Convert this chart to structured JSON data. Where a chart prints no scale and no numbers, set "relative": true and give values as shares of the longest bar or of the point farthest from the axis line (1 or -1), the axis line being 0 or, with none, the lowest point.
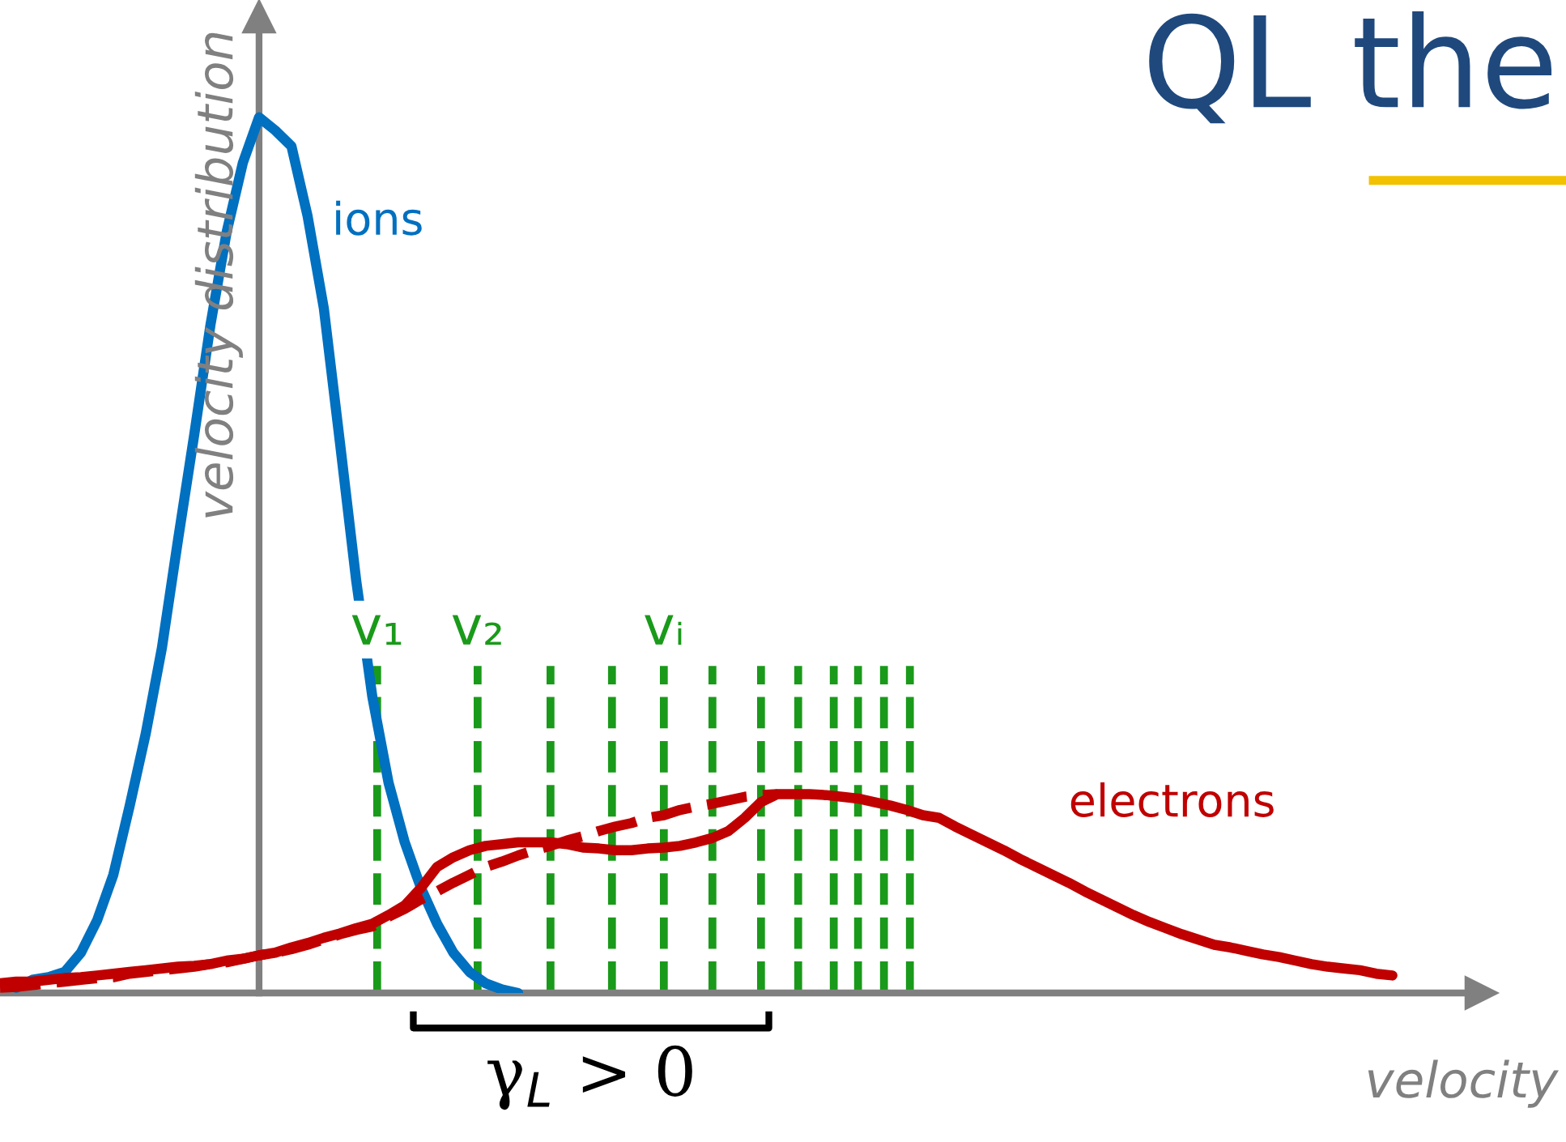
{
  "chart_data": {
    "type": "line",
    "relative": true,
    "title": "QL the",
    "xlabel": "velocity",
    "ylabel": "velocity distribution",
    "categories": [
      null,
      null,
      null,
      null,
      null,
      null,
      null,
      null,
      null,
      null,
      null,
      null,
      null,
      null,
      null,
      null,
      null,
      null,
      null,
      null,
      null,
      null,
      null,
      null,
      null,
      null,
      null,
      null,
      null,
      null,
      null,
      null,
      null,
      null,
      null,
      null,
      null,
      null,
      null,
      null,
      null,
      null,
      null,
      null,
      null,
      null,
      null,
      null,
      null,
      null,
      null,
      null,
      null,
      null,
      null,
      null,
      null,
      null,
      null,
      null,
      null,
      null,
      null,
      null,
      null,
      null,
      null,
      null,
      null,
      null,
      null,
      null,
      null,
      null,
      null,
      null,
      null,
      null,
      null,
      null,
      null,
      null,
      null,
      null,
      null,
      null,
      null,
      null,
      null,
      null,
      null
    ],
    "series": [
      {
        "name": "ions",
        "color": "#0070c0",
        "line_style": "solid",
        "values": [
          null,
          0.006,
          0.015,
          0.018,
          0.024,
          0.046,
          0.083,
          0.135,
          0.213,
          0.296,
          0.394,
          0.518,
          0.638,
          0.763,
          0.869,
          0.948,
          1,
          0.985,
          0.967,
          0.887,
          0.782,
          0.628,
          0.471,
          0.338,
          0.24,
          0.172,
          0.12,
          0.079,
          0.046,
          0.024,
          0.011,
          0.004,
          0,
          null,
          null,
          null,
          null,
          null,
          null,
          null,
          null,
          null,
          null,
          null,
          null,
          null,
          null,
          null,
          null,
          null,
          null,
          null,
          null,
          null,
          null,
          null,
          null,
          null,
          null,
          null,
          null,
          null,
          null,
          null,
          null,
          null,
          null,
          null,
          null,
          null,
          null,
          null,
          null,
          null,
          null,
          null,
          null,
          null,
          null,
          null,
          null,
          null,
          null,
          null,
          null,
          null,
          null,
          null,
          null,
          null,
          null
        ]
      },
      {
        "name": "electrons",
        "color": "#c00000",
        "line_style": "solid",
        "values": [
          0.011,
          0.013,
          0.013,
          0.015,
          0.017,
          0.018,
          0.02,
          0.022,
          0.024,
          0.026,
          0.028,
          0.03,
          0.031,
          0.033,
          0.037,
          0.039,
          0.043,
          0.046,
          0.052,
          0.057,
          0.063,
          0.068,
          0.074,
          0.079,
          0.089,
          0.1,
          0.12,
          0.144,
          0.155,
          0.163,
          0.168,
          0.17,
          0.172,
          0.172,
          0.172,
          0.17,
          0.166,
          0.165,
          0.163,
          0.163,
          0.165,
          0.166,
          0.168,
          0.172,
          0.177,
          0.185,
          0.2,
          0.218,
          0.227,
          0.227,
          0.227,
          0.226,
          0.224,
          0.222,
          0.218,
          0.214,
          0.209,
          0.203,
          0.2,
          0.19,
          0.181,
          0.172,
          0.163,
          0.153,
          0.144,
          0.135,
          0.126,
          0.116,
          0.107,
          0.098,
          0.089,
          0.081,
          0.074,
          0.067,
          0.061,
          0.055,
          0.052,
          0.048,
          0.044,
          0.041,
          0.037,
          0.033,
          0.03,
          0.028,
          0.026,
          0.022,
          0.02,
          null,
          null,
          null,
          null
        ]
      },
      {
        "color": "#c00000",
        "line_style": "dashed",
        "values": [
          0.006,
          0.007,
          0.009,
          0.011,
          0.013,
          0.015,
          0.017,
          0.018,
          0.022,
          0.024,
          0.026,
          0.028,
          0.03,
          0.033,
          0.035,
          0.039,
          0.043,
          0.046,
          0.05,
          0.055,
          0.061,
          0.067,
          0.072,
          0.076,
          0.087,
          0.096,
          0.107,
          0.116,
          0.126,
          0.135,
          0.144,
          0.15,
          0.157,
          0.163,
          0.168,
          0.174,
          0.179,
          0.185,
          0.19,
          0.194,
          0.2,
          0.203,
          0.209,
          0.213,
          0.216,
          0.22,
          0.224,
          0.226,
          0.227,
          null,
          null,
          null,
          null,
          null,
          null,
          null,
          null,
          null,
          null,
          null,
          null,
          null,
          null,
          null,
          null,
          null,
          null,
          null,
          null,
          null,
          null,
          null,
          null,
          null,
          null,
          null,
          null,
          null,
          null,
          null,
          null,
          null,
          null,
          null,
          null,
          null,
          null,
          null,
          null,
          null,
          null
        ]
      }
    ],
    "annotations": [
      "v₁",
      "v₂",
      "vᵢ",
      "γ$_{L}$ > 0"
    ]
  }
}
